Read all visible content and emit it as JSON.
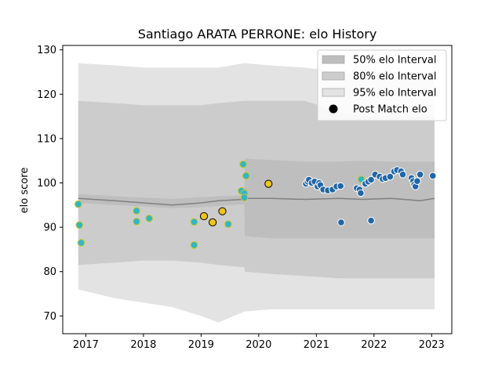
{
  "chart_data": {
    "type": "scatter",
    "title": "Santiago ARATA PERRONE: elo History",
    "ylabel": "elo score",
    "xlabel": "",
    "xlim": [
      2016.6,
      2023.35
    ],
    "ylim": [
      66,
      131
    ],
    "x_ticks": [
      2017,
      2018,
      2019,
      2020,
      2021,
      2022,
      2023
    ],
    "x_tick_labels": [
      "2017",
      "2018",
      "2019",
      "2020",
      "2021",
      "2022",
      "2023"
    ],
    "y_ticks": [
      70,
      80,
      90,
      100,
      110,
      120,
      130
    ],
    "y_tick_labels": [
      "70",
      "80",
      "90",
      "100",
      "110",
      "120",
      "130"
    ],
    "grid": false,
    "legend_position": "top-right",
    "colors": {
      "band50": "#bebebe",
      "band80": "#cccccc",
      "band95": "#e3e3e3",
      "median_line": "#808080",
      "point_blue": "#2166a5",
      "point_teal": "#33b5c8",
      "point_gold": "#f0c419",
      "marker_edge_light": "#ffffff",
      "marker_edge_gold": "#c8c820",
      "marker_edge_dark": "#000000"
    },
    "legend": [
      {
        "label": "50% elo Interval",
        "kind": "band50"
      },
      {
        "label": "80% elo Interval",
        "kind": "band80"
      },
      {
        "label": "95% elo Interval",
        "kind": "band95"
      },
      {
        "label": "Post Match elo",
        "kind": "point"
      }
    ],
    "bands": {
      "x": [
        2016.87,
        2017.5,
        2018.0,
        2018.5,
        2019.0,
        2019.3,
        2019.75,
        2019.76,
        2020.2,
        2020.8,
        2021.4,
        2021.8,
        2022.3,
        2022.8,
        2023.05
      ],
      "median": [
        96.5,
        96.0,
        95.5,
        95.0,
        95.5,
        96.0,
        96.3,
        96.5,
        96.5,
        96.3,
        96.5,
        96.3,
        96.5,
        96.0,
        96.5
      ],
      "band50_upper": [
        97.5,
        97.0,
        96.7,
        96.4,
        96.8,
        97.0,
        97.2,
        105.5,
        105.2,
        104.8,
        104.8,
        105.0,
        104.8,
        104.8,
        104.8
      ],
      "band50_lower": [
        95.5,
        95.0,
        94.7,
        94.3,
        94.5,
        94.8,
        95.2,
        88.0,
        87.5,
        87.5,
        87.5,
        87.5,
        87.5,
        87.5,
        87.5
      ],
      "band80_upper": [
        118.5,
        118.0,
        117.5,
        117.5,
        117.5,
        118.0,
        118.5,
        118.5,
        118.5,
        118.5,
        116.0,
        115.0,
        115.0,
        115.0,
        115.0
      ],
      "band80_lower": [
        81.5,
        82.0,
        82.5,
        82.5,
        82.0,
        81.5,
        81.0,
        80.0,
        79.5,
        79.0,
        78.5,
        78.5,
        78.5,
        78.5,
        78.5
      ],
      "band95_upper": [
        127.0,
        126.5,
        126.0,
        126.0,
        126.0,
        126.0,
        127.0,
        127.0,
        126.5,
        126.0,
        125.0,
        124.5,
        124.0,
        124.0,
        123.5
      ],
      "band95_lower": [
        76.0,
        74.0,
        73.0,
        72.0,
        70.0,
        68.5,
        71.0,
        71.0,
        71.5,
        71.5,
        71.5,
        71.5,
        71.5,
        71.5,
        71.5
      ]
    },
    "series": [
      {
        "kind": "teal",
        "points": [
          [
            2016.87,
            95.2
          ],
          [
            2016.89,
            90.5
          ],
          [
            2016.92,
            86.5
          ],
          [
            2017.88,
            93.7
          ],
          [
            2017.88,
            91.3
          ],
          [
            2018.1,
            92.0
          ],
          [
            2018.88,
            91.2
          ],
          [
            2018.88,
            86.0
          ],
          [
            2019.47,
            90.7
          ],
          [
            2019.7,
            98.2
          ],
          [
            2019.73,
            104.2
          ],
          [
            2019.75,
            97.7
          ],
          [
            2019.75,
            96.7
          ],
          [
            2019.78,
            101.6
          ],
          [
            2021.78,
            100.8
          ]
        ]
      },
      {
        "kind": "gold",
        "points": [
          [
            2019.05,
            92.5
          ],
          [
            2019.2,
            91.1
          ],
          [
            2019.37,
            93.6
          ],
          [
            2020.17,
            99.8
          ]
        ]
      },
      {
        "kind": "blue",
        "points": [
          [
            2020.82,
            99.8
          ],
          [
            2020.85,
            100.3
          ],
          [
            2020.87,
            100.7
          ],
          [
            2020.92,
            100.0
          ],
          [
            2020.97,
            100.3
          ],
          [
            2021.02,
            99.2
          ],
          [
            2021.05,
            100.0
          ],
          [
            2021.07,
            99.5
          ],
          [
            2021.12,
            98.5
          ],
          [
            2021.2,
            98.3
          ],
          [
            2021.28,
            98.5
          ],
          [
            2021.35,
            99.2
          ],
          [
            2021.42,
            99.3
          ],
          [
            2021.43,
            91.1
          ],
          [
            2021.7,
            98.8
          ],
          [
            2021.75,
            98.5
          ],
          [
            2021.77,
            97.7
          ],
          [
            2021.85,
            99.8
          ],
          [
            2021.9,
            100.3
          ],
          [
            2021.95,
            100.7
          ],
          [
            2021.95,
            91.5
          ],
          [
            2022.02,
            101.9
          ],
          [
            2022.1,
            101.4
          ],
          [
            2022.15,
            100.9
          ],
          [
            2022.2,
            101.1
          ],
          [
            2022.28,
            101.4
          ],
          [
            2022.35,
            102.6
          ],
          [
            2022.4,
            102.9
          ],
          [
            2022.47,
            102.6
          ],
          [
            2022.5,
            101.9
          ],
          [
            2022.65,
            101.1
          ],
          [
            2022.68,
            100.4
          ],
          [
            2022.7,
            99.6
          ],
          [
            2022.72,
            99.2
          ],
          [
            2022.75,
            100.4
          ],
          [
            2022.8,
            101.9
          ],
          [
            2023.02,
            101.6
          ]
        ]
      }
    ]
  }
}
